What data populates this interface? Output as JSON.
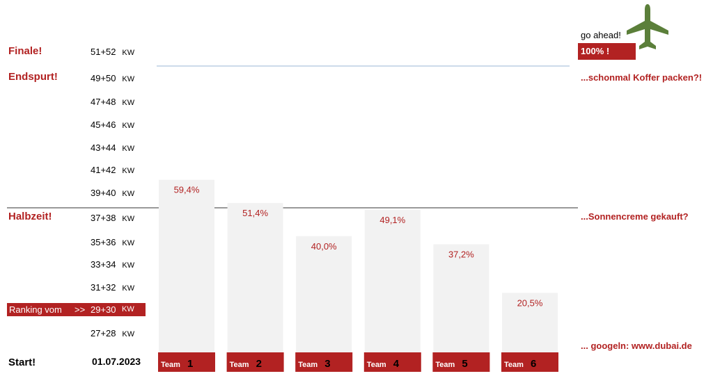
{
  "chart_data": {
    "type": "bar",
    "categories": [
      "1",
      "2",
      "3",
      "4",
      "5",
      "6"
    ],
    "category_prefix": "Team",
    "values": [
      59.4,
      51.4,
      40.0,
      49.1,
      37.2,
      20.5
    ],
    "value_labels": [
      "59,4%",
      "51,4%",
      "40,0%",
      "49,1%",
      "37,2%",
      "20,5%"
    ],
    "ylim": [
      0,
      100
    ],
    "y_ticks": [
      {
        "weeks": "51+52",
        "unit": "KW"
      },
      {
        "weeks": "49+50",
        "unit": "KW"
      },
      {
        "weeks": "47+48",
        "unit": "KW"
      },
      {
        "weeks": "45+46",
        "unit": "KW"
      },
      {
        "weeks": "43+44",
        "unit": "KW"
      },
      {
        "weeks": "41+42",
        "unit": "KW"
      },
      {
        "weeks": "39+40",
        "unit": "KW"
      },
      {
        "weeks": "37+38",
        "unit": "KW"
      },
      {
        "weeks": "35+36",
        "unit": "KW"
      },
      {
        "weeks": "33+34",
        "unit": "KW"
      },
      {
        "weeks": "31+32",
        "unit": "KW"
      },
      {
        "weeks": "29+30",
        "unit": "KW"
      },
      {
        "weeks": "27+28",
        "unit": "KW"
      }
    ],
    "start_date": "01.07.2023",
    "bar_color": "#f2f2f2",
    "accent_color": "#b22222",
    "grid": false
  },
  "phases": {
    "finale": "Finale!",
    "endspurt": "Endspurt!",
    "halbzeit": "Halbzeit!",
    "start": "Start!"
  },
  "ranking": {
    "label": "Ranking vom",
    "arrow": ">>",
    "weeks": "29+30",
    "unit": "KW"
  },
  "notes": {
    "go_ahead": "go ahead!",
    "hundred": "100% !",
    "koffer": "...schonmal Koffer packen?!",
    "sonnencreme": "...Sonnencreme gekauft?",
    "dubai": "... googeln:  www.dubai.de"
  },
  "icons": {
    "airplane": "airplane-icon",
    "airplane_color": "#5b7f3a"
  }
}
